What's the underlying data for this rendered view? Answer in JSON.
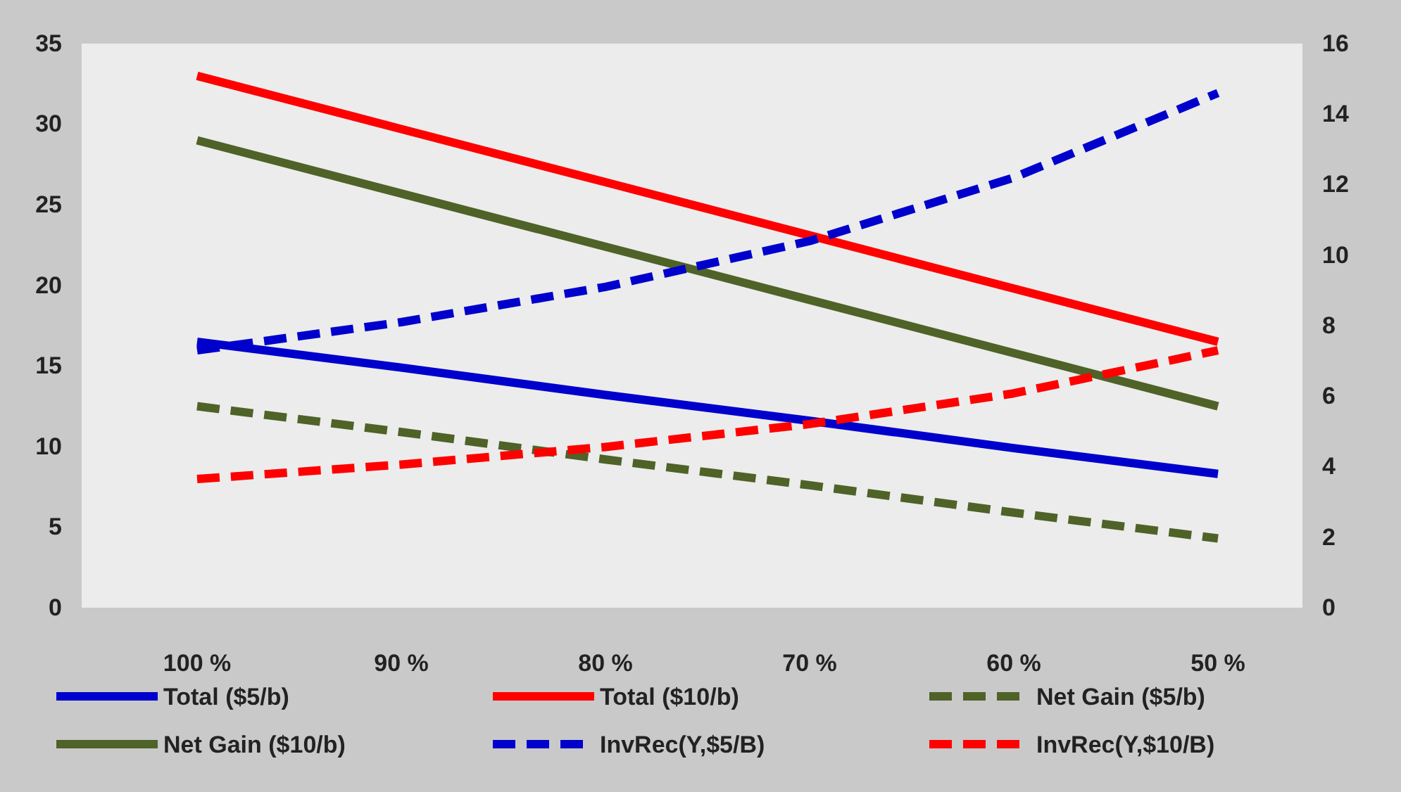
{
  "chart_data": {
    "type": "line",
    "categories": [
      "100 %",
      "90 %",
      "80 %",
      "70 %",
      "60 %",
      "50 %"
    ],
    "series": [
      {
        "name": "Total ($5/b)",
        "color": "#0000cc",
        "line_style": "solid",
        "values": [
          16.5,
          14.9,
          13.2,
          11.6,
          9.9,
          8.3
        ]
      },
      {
        "name": "Total ($10/b)",
        "color": "#ff0000",
        "line_style": "solid",
        "values": [
          33,
          29.7,
          26.4,
          23.1,
          19.8,
          16.5
        ]
      },
      {
        "name": "Net Gain ($5/b)",
        "color": "#4f6228",
        "line_style": "dashed",
        "values": [
          12.5,
          10.9,
          9.2,
          7.6,
          5.9,
          4.3
        ]
      },
      {
        "name": "Net Gain ($10/b)",
        "color": "#4f6228",
        "line_style": "solid",
        "values": [
          29,
          25.7,
          22.4,
          19.1,
          15.8,
          12.5
        ]
      },
      {
        "name": "InvRec(Y,$5/B)",
        "color": "#0000cc",
        "line_style": "dashed",
        "axis": "y2",
        "values": [
          7.3,
          8.1,
          9.1,
          10.4,
          12.2,
          14.6
        ]
      },
      {
        "name": "InvRec(Y,$10/B)",
        "color": "#ff0000",
        "line_style": "dashed",
        "axis": "y2",
        "values": [
          3.65,
          4.06,
          4.56,
          5.21,
          6.08,
          7.3
        ]
      }
    ],
    "ylim": [
      0,
      35
    ],
    "yticks": [
      0,
      5,
      10,
      15,
      20,
      25,
      30,
      35
    ],
    "y2lim": [
      0,
      16
    ],
    "y2ticks": [
      0,
      2,
      4,
      6,
      8,
      10,
      12,
      14,
      16
    ],
    "legend": "bottom",
    "grid": false,
    "marker": "none"
  }
}
